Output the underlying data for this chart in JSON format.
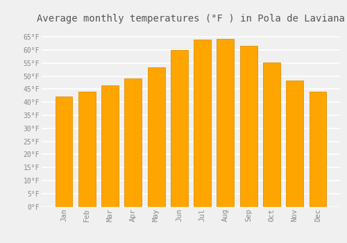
{
  "months": [
    "Jan",
    "Feb",
    "Mar",
    "Apr",
    "May",
    "Jun",
    "Jul",
    "Aug",
    "Sep",
    "Oct",
    "Nov",
    "Dec"
  ],
  "values": [
    42.3,
    44.1,
    46.4,
    49.1,
    53.4,
    59.9,
    64.0,
    64.2,
    61.7,
    55.2,
    48.2,
    44.1
  ],
  "bar_color": "#FFA500",
  "bar_edge_color": "#E09000",
  "background_color": "#F0F0F0",
  "grid_color": "#FFFFFF",
  "title": "Average monthly temperatures (°F ) in Pola de Laviana",
  "title_fontsize": 10,
  "title_color": "#555555",
  "tick_color": "#888888",
  "ylim": [
    0,
    68
  ],
  "yticks": [
    0,
    5,
    10,
    15,
    20,
    25,
    30,
    35,
    40,
    45,
    50,
    55,
    60,
    65
  ],
  "ytick_labels": [
    "0°F",
    "5°F",
    "10°F",
    "15°F",
    "20°F",
    "25°F",
    "30°F",
    "35°F",
    "40°F",
    "45°F",
    "50°F",
    "55°F",
    "60°F",
    "65°F"
  ]
}
